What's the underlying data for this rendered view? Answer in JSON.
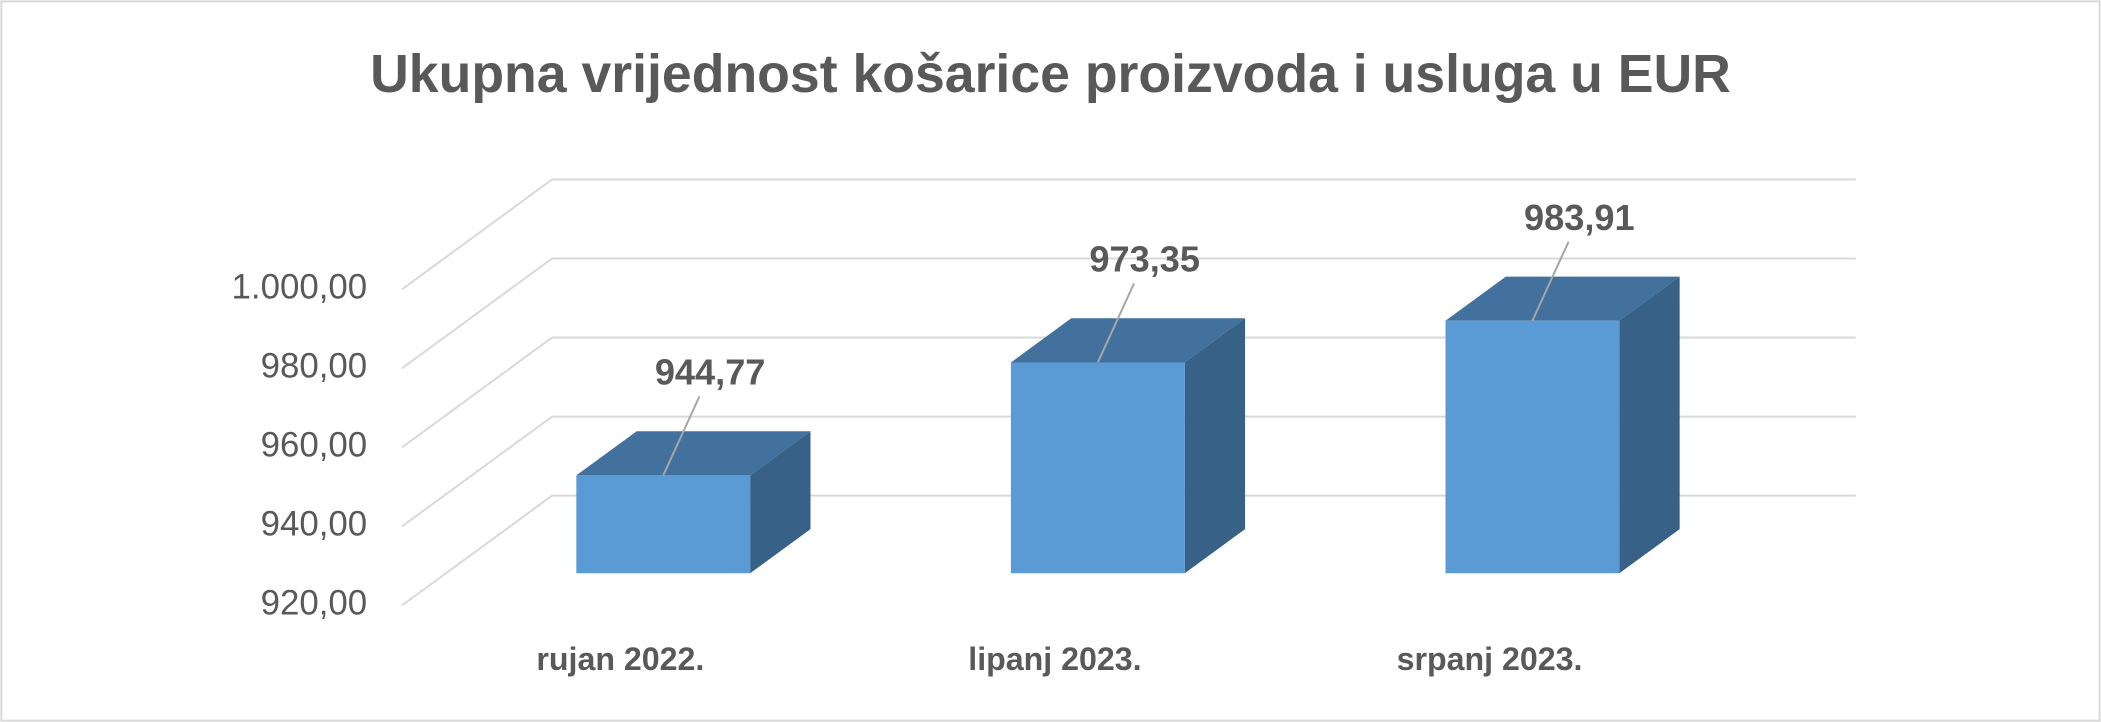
{
  "chart_data": {
    "type": "bar3d",
    "title": "Ukupna vrijednost košarice proizvoda i usluga u EUR",
    "categories": [
      "rujan 2022.",
      "lipanj 2023.",
      "srpanj 2023."
    ],
    "values": [
      944.77,
      973.35,
      983.91
    ],
    "value_labels": [
      "944,77",
      "973,35",
      "983,91"
    ],
    "color": "#5b9bd5",
    "ylim": [
      920,
      1000
    ],
    "yticks": [
      {
        "value": 920,
        "label": "920,00"
      },
      {
        "value": 940,
        "label": "940,00"
      },
      {
        "value": 960,
        "label": "960,00"
      },
      {
        "value": 980,
        "label": "980,00"
      },
      {
        "value": 1000,
        "label": "1.000,00"
      }
    ],
    "grid": true
  }
}
